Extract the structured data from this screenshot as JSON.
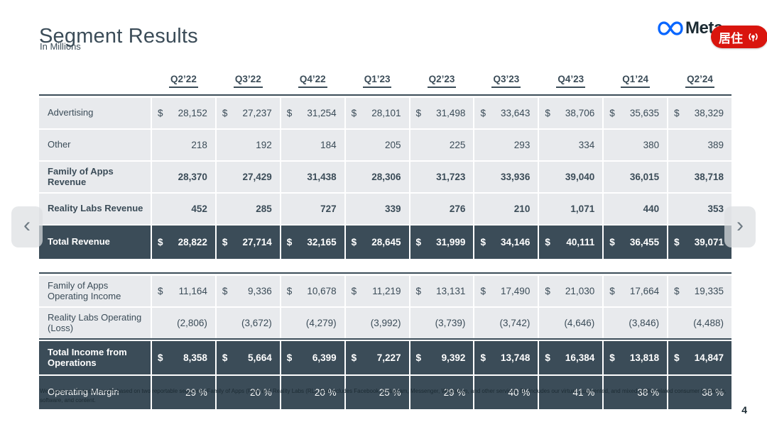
{
  "page": {
    "title": "Segment Results",
    "subtitle": "In Millions",
    "page_number": "4",
    "footnote": "We report our financial results based on two reportable segments: Family of Apps (FoA) and Reality Labs (RL). FoA includes Facebook, Instagram, Messenger, WhatsApp, and other services. RL includes our virtual, augmented, and mixed reality related consumer hardware, software, and content."
  },
  "brand": {
    "logo_text": "Meta"
  },
  "badge": {
    "text": "居住",
    "icon": "broadcast-icon"
  },
  "nav": {
    "prev": "‹",
    "next": "›"
  },
  "colors": {
    "accent_dark": "#3b4c58",
    "row_light": "#e8eaed",
    "badge_red": "#d9150e",
    "logo_blue": "#0866ff",
    "text_dark": "#1c2b33"
  },
  "columns": [
    "Q2’22",
    "Q3’22",
    "Q4’22",
    "Q1’23",
    "Q2’23",
    "Q3’23",
    "Q4’23",
    "Q1’24",
    "Q2’24"
  ],
  "revenue_table": {
    "rows": [
      {
        "label": "Advertising",
        "dollar": true,
        "dark": false,
        "bold": false,
        "values": [
          "28,152",
          "27,237",
          "31,254",
          "28,101",
          "31,498",
          "33,643",
          "38,706",
          "35,635",
          "38,329"
        ]
      },
      {
        "label": "Other",
        "dollar": false,
        "dark": false,
        "bold": false,
        "values": [
          "218",
          "192",
          "184",
          "205",
          "225",
          "293",
          "334",
          "380",
          "389"
        ]
      },
      {
        "label": "Family of Apps Revenue",
        "dollar": false,
        "dark": false,
        "bold": true,
        "values": [
          "28,370",
          "27,429",
          "31,438",
          "28,306",
          "31,723",
          "33,936",
          "39,040",
          "36,015",
          "38,718"
        ]
      },
      {
        "label": "Reality Labs Revenue",
        "dollar": false,
        "dark": false,
        "bold": true,
        "values": [
          "452",
          "285",
          "727",
          "339",
          "276",
          "210",
          "1,071",
          "440",
          "353"
        ]
      },
      {
        "label": "Total Revenue",
        "dollar": true,
        "dark": true,
        "bold": true,
        "values": [
          "28,822",
          "27,714",
          "32,165",
          "28,645",
          "31,999",
          "34,146",
          "40,111",
          "36,455",
          "39,071"
        ]
      }
    ]
  },
  "income_table": {
    "rows": [
      {
        "label": "Family of Apps Operating Income",
        "dollar": true,
        "dark": false,
        "bold": false,
        "values": [
          "11,164",
          "9,336",
          "10,678",
          "11,219",
          "13,131",
          "17,490",
          "21,030",
          "17,664",
          "19,335"
        ]
      },
      {
        "label": "Reality Labs Operating (Loss)",
        "dollar": false,
        "dark": false,
        "bold": false,
        "rule_below": true,
        "values": [
          "(2,806)",
          "(3,672)",
          "(4,279)",
          "(3,992)",
          "(3,739)",
          "(3,742)",
          "(4,646)",
          "(3,846)",
          "(4,488)"
        ]
      },
      {
        "label": "Total Income from Operations",
        "dollar": true,
        "dark": true,
        "bold": true,
        "values": [
          "8,358",
          "5,664",
          "6,399",
          "7,227",
          "9,392",
          "13,748",
          "16,384",
          "13,818",
          "14,847"
        ]
      },
      {
        "label": "Operating Margin",
        "dollar": false,
        "dark": true,
        "bold": false,
        "values": [
          "29 %",
          "20 %",
          "20 %",
          "25 %",
          "29 %",
          "40 %",
          "41 %",
          "38 %",
          "38 %"
        ]
      }
    ]
  }
}
